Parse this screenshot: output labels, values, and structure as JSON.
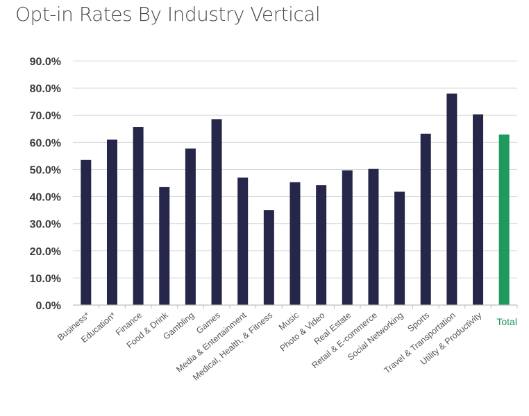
{
  "chart_data": {
    "type": "bar",
    "title": "Opt-in Rates By Industry Vertical",
    "categories": [
      "Business*",
      "Education*",
      "Finance",
      "Food & Drink",
      "Gambling",
      "Games",
      "Media & Entertainment",
      "Medical, Health, & Fitness",
      "Music",
      "Photo & Video",
      "Real Estate",
      "Retail & E-commerce",
      "Social Networking",
      "Sports",
      "Travel & Transportation",
      "Utility & Productivity",
      "Total"
    ],
    "values": [
      53.5,
      61.0,
      65.7,
      43.5,
      57.7,
      68.5,
      47.0,
      35.0,
      45.3,
      44.2,
      49.7,
      50.2,
      41.8,
      63.2,
      78.0,
      70.3,
      62.9
    ],
    "ylim": [
      0,
      90
    ],
    "yticks": [
      0,
      10,
      20,
      30,
      40,
      50,
      60,
      70,
      80,
      90
    ],
    "ytick_labels": [
      "0.0%",
      "10.0%",
      "20.0%",
      "30.0%",
      "40.0%",
      "50.0%",
      "60.0%",
      "70.0%",
      "80.0%",
      "90.0%"
    ],
    "xlabel": "",
    "ylabel": "",
    "grid": true,
    "bar_color": "#26264a",
    "highlight_category": "Total",
    "highlight_color": "#1f9a5c",
    "highlight_label_color": "#1f9a5c",
    "legend": "none"
  }
}
